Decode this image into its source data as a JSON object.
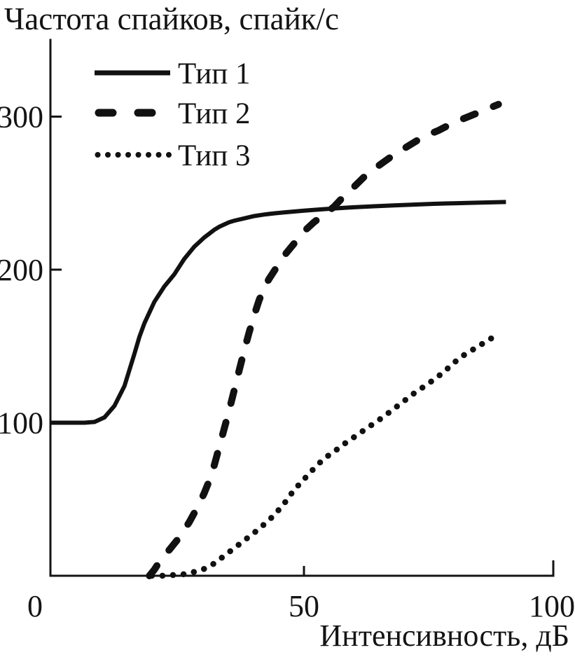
{
  "chart_data": {
    "type": "line",
    "title": "",
    "ylabel": "Частота спайков, спайк/с",
    "xlabel": "Интенсивность, дБ",
    "xlim": [
      0,
      100
    ],
    "ylim": [
      0,
      350
    ],
    "x_ticks": [
      0,
      50,
      100
    ],
    "y_ticks": [
      100,
      200,
      300
    ],
    "grid": false,
    "legend_position": "top-left",
    "line_color": "#111111",
    "background": "#ffffff",
    "series": [
      {
        "name": "Тип 1",
        "style": "solid",
        "points": [
          [
            -0.8,
            100
          ],
          [
            2,
            100
          ],
          [
            4,
            100
          ],
          [
            6,
            100
          ],
          [
            8,
            100.5
          ],
          [
            10,
            103.5
          ],
          [
            12,
            111
          ],
          [
            14,
            124
          ],
          [
            16,
            145
          ],
          [
            17,
            156
          ],
          [
            18,
            165
          ],
          [
            19,
            172
          ],
          [
            20,
            179
          ],
          [
            21,
            184
          ],
          [
            22,
            189
          ],
          [
            23,
            193
          ],
          [
            24,
            197
          ],
          [
            25,
            202
          ],
          [
            26,
            207
          ],
          [
            27,
            211
          ],
          [
            28,
            215
          ],
          [
            29,
            218
          ],
          [
            30,
            221
          ],
          [
            31,
            223.5
          ],
          [
            32,
            226
          ],
          [
            33,
            228
          ],
          [
            34,
            229.5
          ],
          [
            35,
            231
          ],
          [
            36,
            232
          ],
          [
            38,
            233.5
          ],
          [
            40,
            235
          ],
          [
            42,
            236
          ],
          [
            44,
            236.8
          ],
          [
            46,
            237.4
          ],
          [
            48,
            238
          ],
          [
            50,
            238.6
          ],
          [
            53,
            239.3
          ],
          [
            56,
            240
          ],
          [
            60,
            240.8
          ],
          [
            64,
            241.4
          ],
          [
            68,
            242
          ],
          [
            72,
            242.5
          ],
          [
            76,
            243
          ],
          [
            80,
            243.4
          ],
          [
            84,
            243.7
          ],
          [
            90.5,
            244.2
          ]
        ]
      },
      {
        "name": "Тип 2",
        "style": "dashed",
        "points": [
          [
            19,
            0
          ],
          [
            20,
            4
          ],
          [
            21,
            9
          ],
          [
            22,
            13
          ],
          [
            23,
            17
          ],
          [
            24,
            21
          ],
          [
            25,
            25
          ],
          [
            26,
            30
          ],
          [
            27,
            35
          ],
          [
            28,
            41
          ],
          [
            29,
            47
          ],
          [
            30,
            54
          ],
          [
            31,
            62
          ],
          [
            32,
            72
          ],
          [
            33,
            84
          ],
          [
            34,
            96
          ],
          [
            35,
            108
          ],
          [
            36,
            121
          ],
          [
            37,
            134
          ],
          [
            38,
            147
          ],
          [
            39,
            159
          ],
          [
            40,
            170
          ],
          [
            41,
            180
          ],
          [
            42,
            188
          ],
          [
            43,
            194
          ],
          [
            44,
            199
          ],
          [
            45,
            204
          ],
          [
            46,
            209
          ],
          [
            47,
            213
          ],
          [
            48,
            217
          ],
          [
            49,
            221
          ],
          [
            50,
            225
          ],
          [
            52,
            231
          ],
          [
            54,
            236
          ],
          [
            56,
            241
          ],
          [
            58,
            248
          ],
          [
            60,
            254
          ],
          [
            62.5,
            262
          ],
          [
            65,
            268
          ],
          [
            68,
            275
          ],
          [
            71,
            281
          ],
          [
            74,
            287
          ],
          [
            77,
            291
          ],
          [
            80,
            296
          ],
          [
            83,
            300
          ],
          [
            86,
            304
          ],
          [
            89,
            308
          ]
        ]
      },
      {
        "name": "Тип 3",
        "style": "dotted",
        "points": [
          [
            19.5,
            0
          ],
          [
            22,
            0
          ],
          [
            24,
            0.5
          ],
          [
            26,
            1
          ],
          [
            28,
            2.5
          ],
          [
            30,
            4.5
          ],
          [
            32,
            8
          ],
          [
            34,
            13
          ],
          [
            36,
            18
          ],
          [
            38,
            23
          ],
          [
            40,
            28
          ],
          [
            42,
            33.5
          ],
          [
            44,
            39.5
          ],
          [
            46,
            47
          ],
          [
            48,
            56
          ],
          [
            50,
            63
          ],
          [
            52,
            70
          ],
          [
            54,
            76.5
          ],
          [
            56,
            81
          ],
          [
            58,
            86
          ],
          [
            60,
            90.5
          ],
          [
            62,
            95
          ],
          [
            64,
            99.5
          ],
          [
            66,
            104
          ],
          [
            68,
            109
          ],
          [
            70,
            114
          ],
          [
            72,
            119
          ],
          [
            74,
            123.5
          ],
          [
            76,
            128
          ],
          [
            78,
            133
          ],
          [
            80,
            139
          ],
          [
            82,
            144
          ],
          [
            84,
            148
          ],
          [
            86,
            152
          ],
          [
            88.5,
            157
          ]
        ]
      }
    ]
  }
}
